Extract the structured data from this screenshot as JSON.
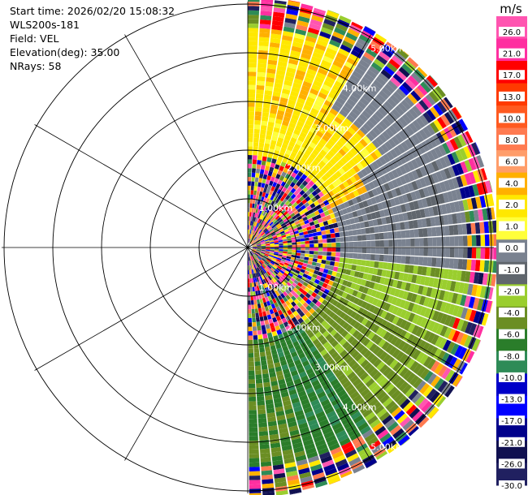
{
  "header": {
    "start_time": "Start time: 2026/02/20 15:08:32",
    "instrument": "WLS200s-181",
    "field": "Field: VEL",
    "elevation": "Elevation(deg): 35.00",
    "nrays": "NRays: 58"
  },
  "chart_data": {
    "type": "heatmap",
    "subtype": "polar-ppi",
    "unit": "m/s",
    "range_rings": [
      "1.00km",
      "2.00km",
      "3.00km",
      "4.00km",
      "5.00km"
    ],
    "sector": "east half (0-180 deg)",
    "colorbar": {
      "ticks": [
        "26.0",
        "21.0",
        "17.0",
        "13.0",
        "10.0",
        "8.0",
        "6.0",
        "4.0",
        "2.0",
        "1.0",
        "0.0",
        "-1.0",
        "-2.0",
        "-4.0",
        "-6.0",
        "-8.0",
        "-10.0",
        "-13.0",
        "-17.0",
        "-21.0",
        "-26.0",
        "-30.0"
      ],
      "colors": [
        "#ff55b0",
        "#ff2fa0",
        "#ff0000",
        "#ff3a00",
        "#ff5a20",
        "#ff7a50",
        "#ff9d6a",
        "#ffb000",
        "#ffe800",
        "#ffff3a",
        "#7a8290",
        "#60666d",
        "#9ace2e",
        "#6b8e23",
        "#2a7d2a",
        "#2e8b57",
        "#0000c8",
        "#0000ff",
        "#00008b",
        "#101050",
        "#202060"
      ]
    },
    "regions": [
      {
        "range_km": [
          0.1,
          1.9
        ],
        "az": [
          0,
          180
        ],
        "value": "mixed/noisy"
      },
      {
        "range_km": [
          1.9,
          3.4
        ],
        "az": [
          0,
          60
        ],
        "value": 2.0
      },
      {
        "range_km": [
          2.5,
          3.6
        ],
        "az": [
          45,
          100
        ],
        "value": 0.0
      },
      {
        "range_km": [
          2.5,
          4.6
        ],
        "az": [
          95,
          145
        ],
        "value": -3.0
      },
      {
        "range_km": [
          2.5,
          4.8
        ],
        "az": [
          140,
          178
        ],
        "value": -6.0
      },
      {
        "range_km": [
          4.4,
          5.2
        ],
        "az": [
          0,
          180
        ],
        "value": "mixed/noisy"
      }
    ]
  }
}
